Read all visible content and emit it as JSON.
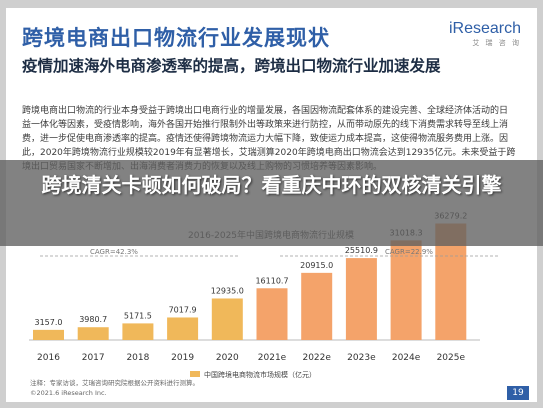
{
  "slide": {
    "title": "跨境电商出口物流行业发展现状",
    "logo_brand": "iResearch",
    "logo_sub": "艾 瑞 咨 询",
    "subtitle": "疫情加速海外电商渗透率的提高，跨境出口物流行业加速发展",
    "body": "跨境电商出口物流的行业本身受益于跨境出口电商行业的增量发展，各国因物流配套体系的建设完善、全球经济体活动的日益一体化等因素，受疫情影响，海外各国开始推行限制外出等政策来进行防控，从而带动原先的线下消费需求转导至线上消费，进一步促使电商渗透率的提高。疫情还使得跨境物流运力大幅下降，致使运力成本提高，这使得物流服务费用上涨。因此，2020年跨境物流行业规模较2019年有显著增长，艾瑞测算2020年跨境电商出口物流会达到12935亿元。未来受益于跨境出口贸易国家不断增加、出海消费者消费力的恢复以及线上购物的习惯培养等因素影响。",
    "banner": "跨境清关卡顿如何破局？看重庆中环的双核清关引擎",
    "footer_note": "注释：专家访谈，艾瑞咨询研究院根据公开资料进行测算。",
    "copyright": "©2021.6 iResearch Inc.",
    "page": "19"
  },
  "chart_data": {
    "type": "bar",
    "categories": [
      "2016",
      "2017",
      "2018",
      "2019",
      "2020",
      "2021e",
      "2022e",
      "2023e",
      "2024e",
      "2025e"
    ],
    "values": [
      3157.0,
      3980.7,
      5171.5,
      7017.9,
      12935.0,
      16110.7,
      20915.0,
      25510.9,
      31018.3,
      36279.2
    ],
    "value_labels": [
      "3157.0",
      "3980.7",
      "5171.5",
      "7017.9",
      "12935.0",
      "16110.7",
      "20915.0",
      "25510.9",
      "31018.3",
      "36279.2"
    ],
    "cagr_left": "CAGR=42.3%",
    "cagr_right": "CAGR=22.9%",
    "chart_title": "2016-2025年中国跨境电商物流行业规模",
    "legend": "中国跨境电商物流市场规模（亿元）",
    "ylim": [
      0,
      38000
    ],
    "colors": {
      "actual": "#f0b85a",
      "forecast": "#f4a36a"
    }
  }
}
